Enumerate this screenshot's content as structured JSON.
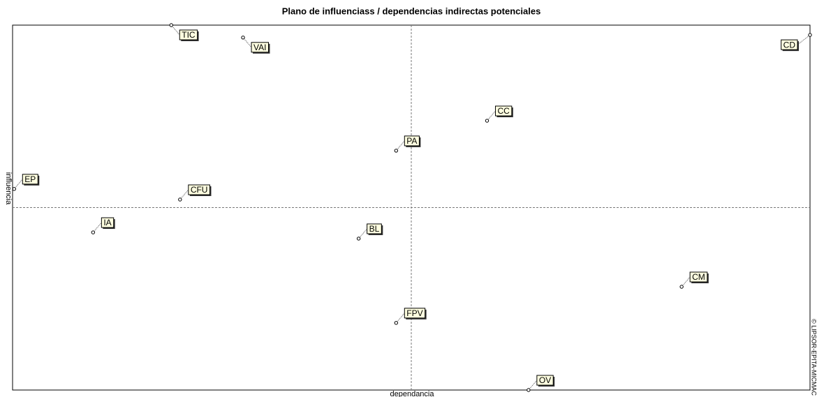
{
  "chart_data": {
    "type": "scatter",
    "title": "Plano de influenciass / dependencias indirectas potenciales",
    "xlabel": "dependancia",
    "ylabel": "influencia",
    "watermark": "© LIPSOR-EPITA-MICMAC",
    "labels": [
      "TIC",
      "VAI",
      "CD",
      "CC",
      "PA",
      "EP",
      "CFU",
      "IA",
      "BL",
      "CM",
      "FPV",
      "OV"
    ],
    "x": [
      19.9,
      28.9,
      100,
      59.5,
      48.1,
      0.2,
      21.0,
      10.1,
      43.4,
      83.9,
      48.1,
      64.7
    ],
    "y": [
      100,
      96.6,
      97.3,
      73.8,
      65.6,
      55.1,
      52.2,
      43.2,
      41.5,
      28.3,
      18.4,
      0
    ],
    "xlim": [
      0,
      100
    ],
    "ylim": [
      0,
      100
    ],
    "reference_lines": {
      "x": 50,
      "y": 50
    },
    "color": "#000000",
    "label_fill": "#ffffe0"
  }
}
